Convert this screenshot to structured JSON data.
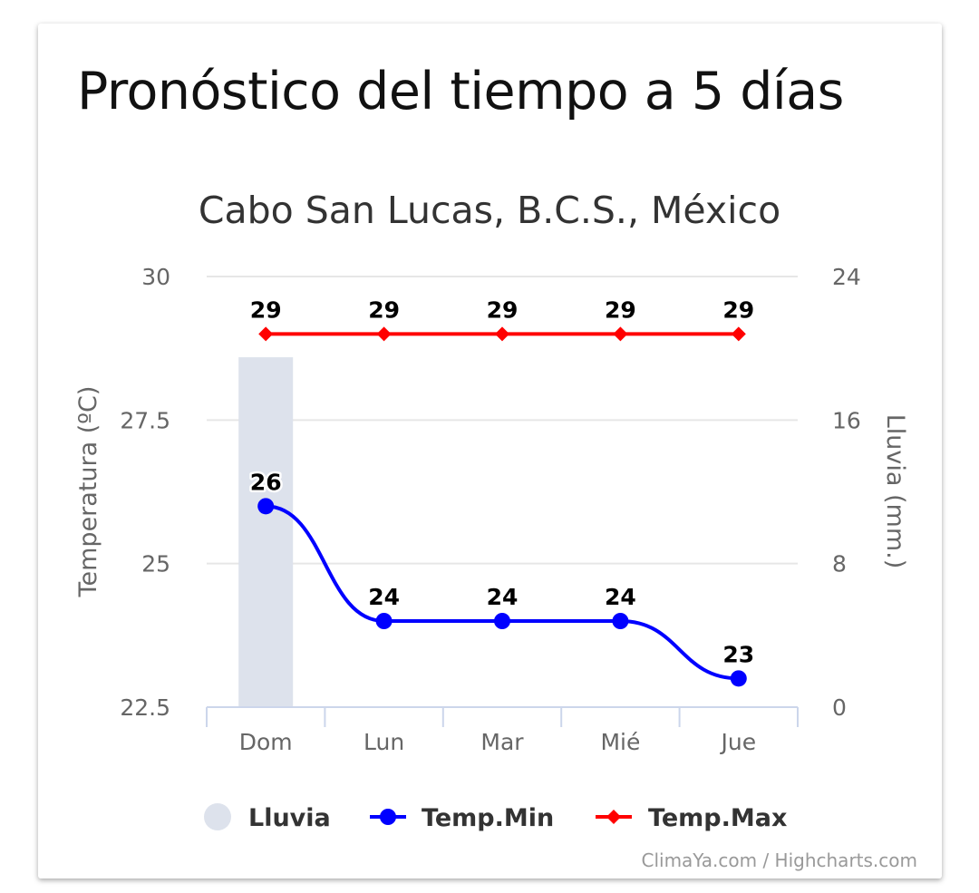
{
  "page": {
    "title": "Pronóstico del tiempo a 5 días",
    "credits": "ClimaYa.com / Highcharts.com"
  },
  "chart_data": {
    "type": "line",
    "title": "Cabo San Lucas, B.C.S., México",
    "categories": [
      "Dom",
      "Lun",
      "Mar",
      "Mié",
      "Jue"
    ],
    "y_left": {
      "label": "Temperatura (ºC)",
      "range": [
        22.5,
        30
      ],
      "ticks": [
        "22.5",
        "25",
        "27.5",
        "30"
      ]
    },
    "y_right": {
      "label": "Lluvia (mm.)",
      "range": [
        0,
        24
      ],
      "ticks": [
        "0",
        "8",
        "16",
        "24"
      ]
    },
    "grid": true,
    "legend_position": "bottom",
    "series": [
      {
        "name": "Lluvia",
        "type": "bar",
        "axis": "right",
        "color": "#dde2ec",
        "values": [
          19.5,
          0,
          0,
          0,
          0
        ]
      },
      {
        "name": "Temp.Min",
        "type": "line",
        "axis": "left",
        "color": "#0000ff",
        "marker": "circle",
        "values": [
          26,
          24,
          24,
          24,
          23
        ]
      },
      {
        "name": "Temp.Max",
        "type": "line",
        "axis": "left",
        "color": "#ff0000",
        "marker": "diamond",
        "values": [
          29,
          29,
          29,
          29,
          29
        ]
      }
    ]
  }
}
